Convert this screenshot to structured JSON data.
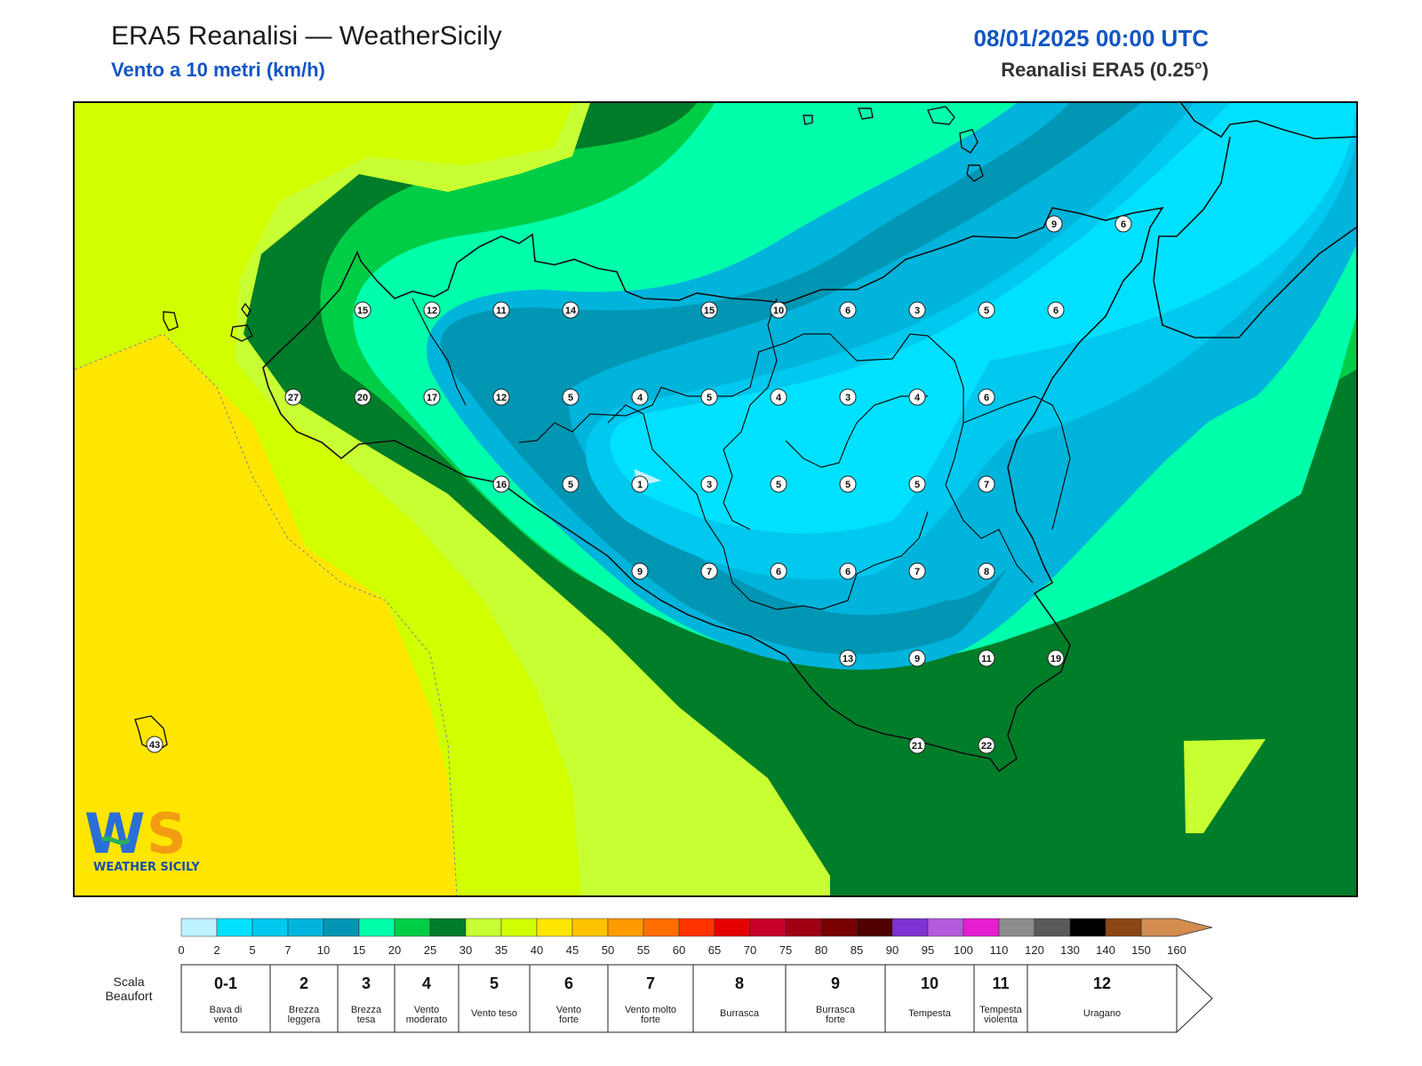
{
  "header": {
    "title": "ERA5 Reanalisi — WeatherSicily",
    "subtitle": "Vento a 10 metri (km/h)",
    "datetime": "08/01/2025 00:00 UTC",
    "model": "Reanalisi ERA5 (0.25°)"
  },
  "logo": {
    "mark": "WS",
    "text": "WEATHER SICILY",
    "colors": {
      "blue": "#2a6fd6",
      "orange": "#f39c12",
      "green": "#27ae60"
    }
  },
  "map": {
    "stations": [
      {
        "value": 15
      },
      {
        "value": 12
      },
      {
        "value": 11
      },
      {
        "value": 14
      },
      {
        "value": 15
      },
      {
        "value": 10
      },
      {
        "value": 6
      },
      {
        "value": 3
      },
      {
        "value": 5
      },
      {
        "value": 6
      },
      {
        "value": 9
      },
      {
        "value": 6
      },
      {
        "value": 27
      },
      {
        "value": 20
      },
      {
        "value": 17
      },
      {
        "value": 12
      },
      {
        "value": 5
      },
      {
        "value": 4
      },
      {
        "value": 5
      },
      {
        "value": 4
      },
      {
        "value": 3
      },
      {
        "value": 4
      },
      {
        "value": 6
      },
      {
        "value": 16
      },
      {
        "value": 5
      },
      {
        "value": 1
      },
      {
        "value": 3
      },
      {
        "value": 5
      },
      {
        "value": 5
      },
      {
        "value": 5
      },
      {
        "value": 7
      },
      {
        "value": 9
      },
      {
        "value": 7
      },
      {
        "value": 6
      },
      {
        "value": 6
      },
      {
        "value": 7
      },
      {
        "value": 8
      },
      {
        "value": 13
      },
      {
        "value": 9
      },
      {
        "value": 11
      },
      {
        "value": 19
      },
      {
        "value": 21
      },
      {
        "value": 22
      },
      {
        "value": 43
      }
    ]
  },
  "colorbar": {
    "ticks": [
      "0",
      "2",
      "5",
      "7",
      "10",
      "15",
      "20",
      "25",
      "30",
      "35",
      "40",
      "45",
      "50",
      "55",
      "60",
      "65",
      "70",
      "75",
      "80",
      "85",
      "90",
      "95",
      "100",
      "110",
      "120",
      "130",
      "140",
      "150",
      "160"
    ],
    "colors": [
      "#bff3ff",
      "#00e1ff",
      "#00c8ee",
      "#00b4dc",
      "#0096b4",
      "#00ffaa",
      "#00cd46",
      "#007d28",
      "#c8ff32",
      "#d2ff00",
      "#ffe600",
      "#ffc300",
      "#ff9b00",
      "#ff6e00",
      "#ff3200",
      "#e60000",
      "#c80028",
      "#a00014",
      "#780000",
      "#500000",
      "#7d32d2",
      "#b45adc",
      "#e61ed2",
      "#8c8c8c",
      "#5a5a5a",
      "#000000",
      "#8c4614",
      "#d28c50"
    ]
  },
  "beaufort": {
    "label": "Scala\nBeaufort",
    "classes": [
      {
        "num": "0-1",
        "desc": "Bava di\nvento"
      },
      {
        "num": "2",
        "desc": "Brezza\nleggera"
      },
      {
        "num": "3",
        "desc": "Brezza\ntesa"
      },
      {
        "num": "4",
        "desc": "Vento\nmoderato"
      },
      {
        "num": "5",
        "desc": "Vento teso"
      },
      {
        "num": "6",
        "desc": "Vento\nforte"
      },
      {
        "num": "7",
        "desc": "Vento molto\nforte"
      },
      {
        "num": "8",
        "desc": "Burrasca"
      },
      {
        "num": "9",
        "desc": "Burrasca\nforte"
      },
      {
        "num": "10",
        "desc": "Tempesta"
      },
      {
        "num": "11",
        "desc": "Tempesta\nviolenta"
      },
      {
        "num": "12",
        "desc": "Uragano"
      }
    ]
  }
}
